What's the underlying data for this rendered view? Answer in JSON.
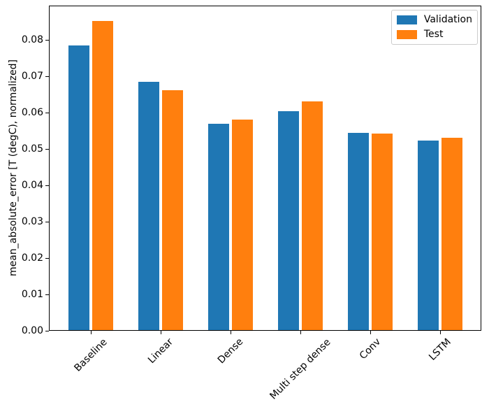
{
  "chart_data": {
    "type": "bar",
    "categories": [
      "Baseline",
      "Linear",
      "Dense",
      "Multi step dense",
      "Conv",
      "LSTM"
    ],
    "series": [
      {
        "name": "Validation",
        "color": "#1f77b4",
        "values": [
          0.0785,
          0.0685,
          0.057,
          0.0604,
          0.0544,
          0.0523
        ]
      },
      {
        "name": "Test",
        "color": "#ff7f0e",
        "values": [
          0.0852,
          0.0662,
          0.0581,
          0.0631,
          0.0542,
          0.0532
        ]
      }
    ],
    "title": "",
    "xlabel": "",
    "ylabel": "mean_absolute_error [T (degC), normalized]",
    "ylim": [
      0,
      0.0895
    ],
    "ytick_values": [
      0.0,
      0.01,
      0.02,
      0.03,
      0.04,
      0.05,
      0.06,
      0.07,
      0.08
    ],
    "ytick_labels": [
      "0.00",
      "0.01",
      "0.02",
      "0.03",
      "0.04",
      "0.05",
      "0.06",
      "0.07",
      "0.08"
    ],
    "grid": false,
    "legend_position": "upper right",
    "bar_width_fraction": 0.3,
    "bar_offset_fraction": 0.17,
    "xtick_rotation_deg": 45,
    "axis_color": "#000000",
    "background_color": "#ffffff"
  }
}
